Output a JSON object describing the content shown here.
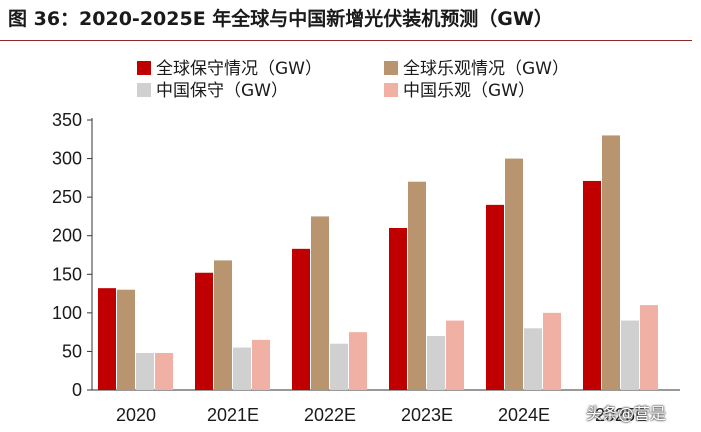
{
  "figure": {
    "title": "图 36：2020-2025E 年全球与中国新增光伏装机预测（GW）"
  },
  "watermark": "头条@营是",
  "chart_data": {
    "type": "bar",
    "categories": [
      "2020",
      "2021E",
      "2022E",
      "2023E",
      "2024E",
      "2025E"
    ],
    "series": [
      {
        "name": "全球保守情况（GW）",
        "color": "#c00000",
        "values": [
          132,
          152,
          183,
          210,
          240,
          271
        ]
      },
      {
        "name": "全球乐观情况（GW）",
        "color": "#b8956f",
        "values": [
          130,
          168,
          225,
          270,
          300,
          330
        ]
      },
      {
        "name": "中国保守（GW）",
        "color": "#d0d0d0",
        "values": [
          48,
          55,
          60,
          70,
          80,
          90
        ]
      },
      {
        "name": "中国乐观（GW）",
        "color": "#f0b0a4",
        "values": [
          48,
          65,
          75,
          90,
          100,
          110
        ]
      }
    ],
    "yticks": [
      0,
      50,
      100,
      150,
      200,
      250,
      300,
      350
    ],
    "ylim": [
      0,
      350
    ],
    "grid": false,
    "legend_position": "top",
    "xlabel": "",
    "ylabel": "",
    "title": ""
  }
}
